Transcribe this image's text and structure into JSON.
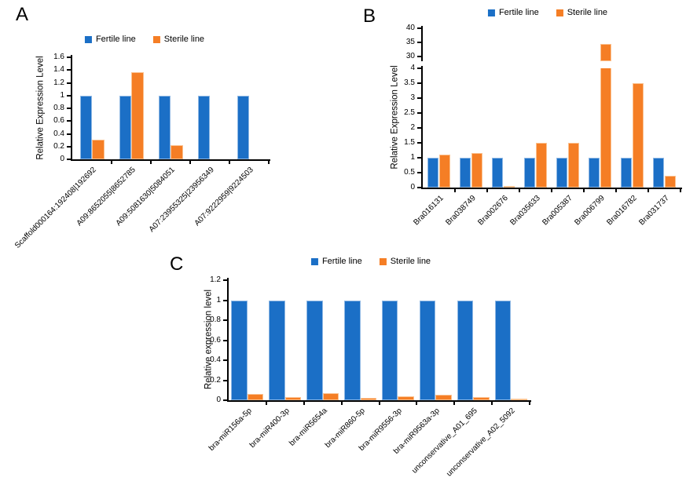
{
  "colors": {
    "fertile": "#1B6FC6",
    "sterile": "#F57E25",
    "fertile_border": "#8FB8E4",
    "sterile_border": "#FBC18F",
    "axis": "#000000"
  },
  "chart_data": [
    {
      "panel_label": "A",
      "type": "bar",
      "title": "",
      "ylabel": "Relative Expression Level",
      "ylim": [
        0,
        1.6
      ],
      "yticks": [
        0,
        0.2,
        0.4,
        0.6,
        0.8,
        1,
        1.2,
        1.4,
        1.6
      ],
      "grid": false,
      "legend_position": "top",
      "categories": [
        "Scaffold000164:192408|192692",
        "A09:8652055|8652785",
        "A09:5081630|5084051",
        "A07:23955325|23956349",
        "A07:9222959|9224503"
      ],
      "series": [
        {
          "name": "Fertile line",
          "values": [
            1,
            1,
            1,
            1,
            1
          ]
        },
        {
          "name": "Sterile line",
          "values": [
            0.31,
            1.37,
            0.22,
            0,
            0
          ]
        }
      ]
    },
    {
      "panel_label": "B",
      "type": "bar",
      "title": "",
      "ylabel": "Relative Expression Level",
      "ylim": [
        0,
        40
      ],
      "axis_break": {
        "lower_lim": [
          0,
          4
        ],
        "lower_ticks": [
          0,
          0.5,
          1,
          1.5,
          2,
          2.5,
          3,
          3.5,
          4
        ],
        "upper_lim": [
          28.3,
          40
        ],
        "upper_ticks": [
          30,
          35,
          40
        ]
      },
      "grid": false,
      "legend_position": "top",
      "categories": [
        "Bra016131",
        "Bra038749",
        "Bra002676",
        "Bra035633",
        "Bra005387",
        "Bra006799",
        "Bra016782",
        "Bra031737"
      ],
      "series": [
        {
          "name": "Fertile line",
          "values": [
            1,
            1,
            1,
            1,
            1,
            1,
            1,
            1
          ]
        },
        {
          "name": "Sterile line",
          "values": [
            1.1,
            1.15,
            0.06,
            1.5,
            1.5,
            34.5,
            3.5,
            0.4
          ]
        }
      ]
    },
    {
      "panel_label": "C",
      "type": "bar",
      "title": "",
      "ylabel": "Relative expression level",
      "ylim": [
        0,
        1.2
      ],
      "yticks": [
        0,
        0.2,
        0.4,
        0.6,
        0.8,
        1,
        1.2
      ],
      "grid": false,
      "legend_position": "top",
      "categories": [
        "bra-miR156a-5p",
        "bra-miR400-3p",
        "bra-miR5654a",
        "bra-miR860-5p",
        "bra-miR9556-3p",
        "bra-miR9563a-3p",
        "unconservative_A01_695",
        "unconservative_A02_5092"
      ],
      "series": [
        {
          "name": "Fertile line",
          "values": [
            1,
            1,
            1,
            1,
            1,
            1,
            1,
            1
          ]
        },
        {
          "name": "Sterile line",
          "values": [
            0.06,
            0.035,
            0.07,
            0.02,
            0.04,
            0.055,
            0.03,
            0.015
          ]
        }
      ]
    }
  ]
}
